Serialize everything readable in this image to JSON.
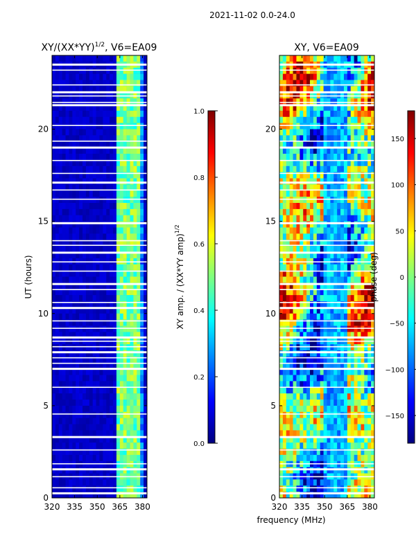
{
  "figure": {
    "suptitle": "2021-11-02 0.0-24.0",
    "xlabel": "frequency (MHz)"
  },
  "chart_data": [
    {
      "type": "heatmap",
      "title_main": "XY/(XX*YY)",
      "title_exp": "1/2",
      "title_suffix": ", V6=EA09",
      "ylabel": "UT (hours)",
      "xlim": [
        320,
        383
      ],
      "ylim": [
        0,
        24
      ],
      "xticks": [
        320,
        335,
        350,
        365,
        380
      ],
      "yticks": [
        0,
        5,
        10,
        15,
        20
      ],
      "description": "normalized XY amplitude; mostly low (~0.0-0.1) across band, elevated (~0.4-0.6) in columns near 363-380 MHz",
      "colorbar": {
        "label_main": "XY amp. / (XX*YY amp)",
        "label_exp": "1/2",
        "range": [
          0.0,
          1.0
        ],
        "ticks": [
          "0.0",
          "0.2",
          "0.4",
          "0.6",
          "0.8",
          "1.0"
        ]
      }
    },
    {
      "type": "heatmap",
      "title": "XY, V6=EA09",
      "xlim": [
        320,
        383
      ],
      "ylim": [
        0,
        24
      ],
      "xticks": [
        320,
        335,
        350,
        365,
        380
      ],
      "yticks": [
        0,
        5,
        10,
        15,
        20
      ],
      "description": "XY phase; broad variation across frequency and time, values spanning -180 to 180 deg",
      "colorbar": {
        "label": "phase (deg)",
        "range": [
          -180,
          180
        ],
        "ticks": [
          "−150",
          "−100",
          "−50",
          "0",
          "50",
          "100",
          "150"
        ]
      }
    }
  ],
  "colors": {
    "jet": [
      "#00007f",
      "#0000ff",
      "#007fff",
      "#00ffff",
      "#7fff7f",
      "#ffff00",
      "#ff7f00",
      "#ff0000",
      "#7f0000"
    ]
  }
}
